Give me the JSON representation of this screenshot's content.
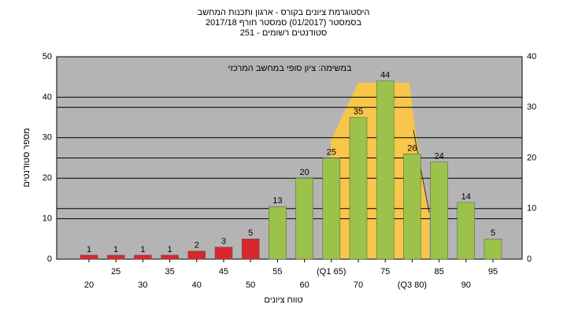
{
  "chart_data": {
    "type": "bar",
    "title": "היסטוגרמת ציונים בקורס - ארגון ותכנות המחשב",
    "subtitle": "בסמסטר  (01/2017)  סמסטר חורף 2017/18",
    "subtitle2": "סטודנטים רשומים - 251",
    "annotation": "במשימה: ציון סופי במחשב המרכזי",
    "ylabel": "מספר סטודנטים",
    "xlabel": "טווח ציונים",
    "categories": [
      "20",
      "25",
      "30",
      "35",
      "40",
      "45",
      "50",
      "55",
      "60",
      "(Q1 65)",
      "70",
      "75",
      "(Q3 80)",
      "85",
      "90",
      "95"
    ],
    "values": [
      1,
      1,
      1,
      1,
      2,
      3,
      5,
      13,
      20,
      25,
      35,
      44,
      26,
      24,
      14,
      5
    ],
    "colors": [
      "#d9262c",
      "#d9262c",
      "#d9262c",
      "#d9262c",
      "#d9262c",
      "#d9262c",
      "#d9262c",
      "#9bc24a",
      "#9bc24a",
      "#9bc24a",
      "#9bc24a",
      "#9bc24a",
      "#9bc24a",
      "#9bc24a",
      "#9bc24a",
      "#9bc24a"
    ],
    "ylim": [
      0,
      50
    ],
    "yticks": [
      0,
      10,
      20,
      30,
      40,
      50
    ],
    "y2lim": [
      0,
      40
    ],
    "y2ticks": [
      0,
      10,
      20,
      30,
      40
    ],
    "grid": true
  }
}
